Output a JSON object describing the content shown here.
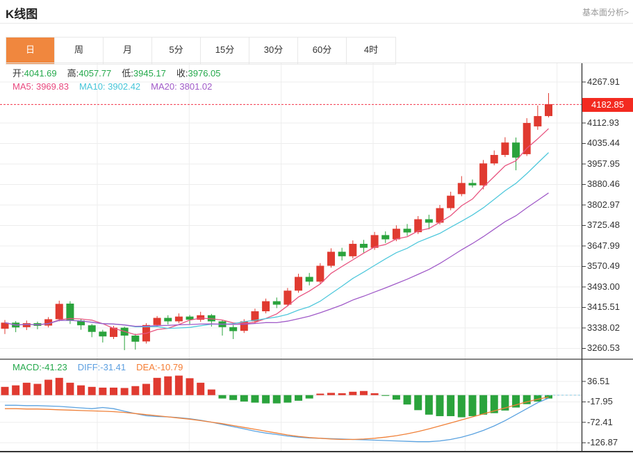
{
  "header": {
    "title": "K线图",
    "link": "基本面分析>"
  },
  "tabs": {
    "items": [
      {
        "label": "日",
        "active": true
      },
      {
        "label": "周",
        "active": false
      },
      {
        "label": "月",
        "active": false
      },
      {
        "label": "5分",
        "active": false
      },
      {
        "label": "15分",
        "active": false
      },
      {
        "label": "30分",
        "active": false
      },
      {
        "label": "60分",
        "active": false
      },
      {
        "label": "4时",
        "active": false
      }
    ]
  },
  "legend": {
    "ohlc": [
      {
        "label": "开:",
        "value": "4041.69"
      },
      {
        "label": "高:",
        "value": "4057.77"
      },
      {
        "label": "低:",
        "value": "3945.17"
      },
      {
        "label": "收:",
        "value": "3976.05"
      }
    ],
    "ma": [
      {
        "label": "MA5:",
        "value": "3969.83"
      },
      {
        "label": "MA10:",
        "value": "3902.42"
      },
      {
        "label": "MA20:",
        "value": "3801.02"
      }
    ],
    "macd": [
      {
        "label": "MACD:",
        "value": "-41.23"
      },
      {
        "label": "DIFF:",
        "value": "-31.41"
      },
      {
        "label": "DEA:",
        "value": "-10.79"
      }
    ]
  },
  "price_tag": {
    "value": "4182.85"
  },
  "main_axis_ticks": [
    "4267.91",
    "4112.93",
    "4035.44",
    "3957.95",
    "3880.46",
    "3802.97",
    "3725.48",
    "3647.99",
    "3570.49",
    "3493.00",
    "3415.51",
    "3338.02",
    "3260.53"
  ],
  "macd_axis_ticks": [
    "36.51",
    "-17.95",
    "-72.41",
    "-126.87"
  ],
  "colors": {
    "up_candle": "#e03a30",
    "down_candle": "#2aa33c",
    "ma5": "#e8537f",
    "ma10": "#4fc8dc",
    "ma20": "#a05ac8",
    "diff_line": "#5aa2e0",
    "dea_line": "#f08038",
    "price_line": "#f3344a",
    "price_tag_bg": "#f32a20",
    "active_tab": "#f0873e",
    "grid": "#ededed",
    "axis": "#3a3a3a"
  },
  "chart_data": {
    "type": "candlestick",
    "current_price": 4182.85,
    "price_axis_range": [
      3219.8,
      4338.8
    ],
    "macd_axis_range": [
      -152.2,
      95.7
    ],
    "candles": [
      [
        3335,
        3368,
        3315,
        3358
      ],
      [
        3358,
        3364,
        3322,
        3340
      ],
      [
        3341,
        3366,
        3330,
        3356
      ],
      [
        3356,
        3362,
        3333,
        3346
      ],
      [
        3347,
        3379,
        3340,
        3371
      ],
      [
        3371,
        3441,
        3363,
        3429
      ],
      [
        3430,
        3439,
        3353,
        3366
      ],
      [
        3366,
        3373,
        3331,
        3348
      ],
      [
        3348,
        3353,
        3303,
        3323
      ],
      [
        3324,
        3331,
        3283,
        3306
      ],
      [
        3304,
        3346,
        3296,
        3339
      ],
      [
        3339,
        3343,
        3254,
        3309
      ],
      [
        3309,
        3316,
        3256,
        3286
      ],
      [
        3287,
        3356,
        3279,
        3349
      ],
      [
        3349,
        3383,
        3341,
        3376
      ],
      [
        3376,
        3386,
        3351,
        3363
      ],
      [
        3363,
        3393,
        3356,
        3381
      ],
      [
        3381,
        3387,
        3353,
        3369
      ],
      [
        3369,
        3399,
        3361,
        3386
      ],
      [
        3386,
        3391,
        3343,
        3363
      ],
      [
        3363,
        3369,
        3309,
        3341
      ],
      [
        3341,
        3349,
        3296,
        3326
      ],
      [
        3327,
        3371,
        3319,
        3363
      ],
      [
        3363,
        3411,
        3356,
        3401
      ],
      [
        3401,
        3449,
        3393,
        3439
      ],
      [
        3439,
        3453,
        3413,
        3426
      ],
      [
        3426,
        3489,
        3419,
        3479
      ],
      [
        3479,
        3543,
        3471,
        3531
      ],
      [
        3531,
        3546,
        3499,
        3513
      ],
      [
        3513,
        3583,
        3506,
        3573
      ],
      [
        3573,
        3639,
        3566,
        3626
      ],
      [
        3626,
        3641,
        3593,
        3609
      ],
      [
        3609,
        3669,
        3601,
        3656
      ],
      [
        3656,
        3671,
        3623,
        3641
      ],
      [
        3641,
        3701,
        3633,
        3689
      ],
      [
        3689,
        3703,
        3659,
        3673
      ],
      [
        3673,
        3726,
        3666,
        3713
      ],
      [
        3713,
        3731,
        3686,
        3699
      ],
      [
        3700,
        3761,
        3693,
        3749
      ],
      [
        3749,
        3766,
        3711,
        3736
      ],
      [
        3736,
        3803,
        3729,
        3791
      ],
      [
        3791,
        3853,
        3783,
        3838
      ],
      [
        3844,
        3912,
        3836,
        3886
      ],
      [
        3886,
        3899,
        3869,
        3877
      ],
      [
        3877,
        3973,
        3862,
        3960
      ],
      [
        3960,
        4009,
        3953,
        3992
      ],
      [
        3992,
        4059,
        3984,
        4039
      ],
      [
        4039,
        4058,
        3934,
        3982
      ],
      [
        3995,
        4131,
        3988,
        4113
      ],
      [
        4100,
        4179,
        4087,
        4139
      ],
      [
        4139,
        4226,
        4134,
        4184
      ]
    ],
    "ma_periods": [
      5,
      10,
      20
    ],
    "macd": {
      "hist": [
        22,
        26,
        33,
        30,
        41,
        46,
        33,
        26,
        22,
        20,
        20,
        19,
        24,
        30,
        46,
        50,
        52,
        45,
        33,
        15,
        -9,
        -13,
        -17,
        -20,
        -22,
        -22,
        -20,
        -15,
        -9,
        4,
        6,
        5,
        9,
        11,
        5,
        -2,
        -12,
        -25,
        -40,
        -52,
        -56,
        -56,
        -59,
        -56,
        -52,
        -48,
        -41,
        -33,
        -24,
        -17,
        -9
      ],
      "diff": [
        -27,
        -27,
        -28,
        -28,
        -29,
        -30,
        -32,
        -34,
        -36,
        -33,
        -36,
        -43,
        -49,
        -55,
        -57,
        -58,
        -60,
        -63,
        -67,
        -72,
        -78,
        -84,
        -90,
        -96,
        -101,
        -105,
        -109,
        -112,
        -114,
        -115,
        -116,
        -117,
        -118,
        -119,
        -120,
        -121,
        -122,
        -123,
        -124,
        -124,
        -122,
        -118,
        -112,
        -104,
        -94,
        -82,
        -68,
        -52,
        -36,
        -20,
        -8
      ],
      "dea": [
        -36,
        -36,
        -37,
        -37,
        -38,
        -39,
        -40,
        -41,
        -42,
        -43,
        -44,
        -46,
        -49,
        -52,
        -55,
        -58,
        -61,
        -64,
        -68,
        -72,
        -76,
        -81,
        -86,
        -91,
        -96,
        -101,
        -106,
        -110,
        -113,
        -115,
        -117,
        -118,
        -118,
        -117,
        -115,
        -112,
        -108,
        -103,
        -97,
        -90,
        -82,
        -74,
        -66,
        -58,
        -50,
        -42,
        -34,
        -26,
        -18,
        -11,
        -5
      ]
    }
  }
}
